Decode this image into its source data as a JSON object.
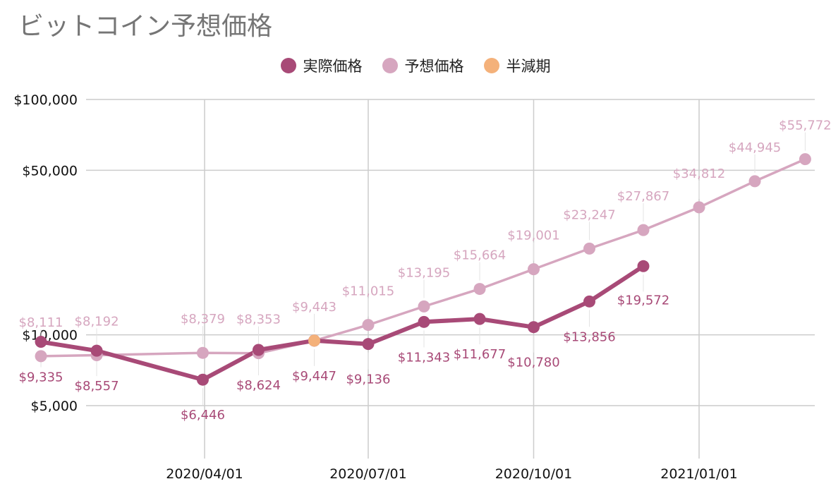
{
  "chart_data": {
    "type": "line",
    "title": "ビットコイン予想価格",
    "y_scale": "log",
    "ylim": [
      3000,
      100000
    ],
    "y_ticks": [
      {
        "value": 100000,
        "label": "$100,000"
      },
      {
        "value": 50000,
        "label": "$50,000"
      },
      {
        "value": 10000,
        "label": "$10,000"
      },
      {
        "value": 5000,
        "label": "$5,000"
      }
    ],
    "x_ticks": [
      "2020/04/01",
      "2020/07/01",
      "2020/10/01",
      "2021/01/01"
    ],
    "grid": true,
    "legend_position": "top",
    "series": [
      {
        "name": "実際価格",
        "color": "#a84a77",
        "points": [
          {
            "x": "2020/01/01",
            "y": 9335,
            "label": "$9,335"
          },
          {
            "x": "2020/02/01",
            "y": 8557,
            "label": "$8,557"
          },
          {
            "x": "2020/03/31",
            "y": 6446,
            "label": "$6,446"
          },
          {
            "x": "2020/05/01",
            "y": 8624,
            "label": "$8,624"
          },
          {
            "x": "2020/06/01",
            "y": 9447,
            "label": "$9,447"
          },
          {
            "x": "2020/07/01",
            "y": 9136,
            "label": "$9,136"
          },
          {
            "x": "2020/08/01",
            "y": 11343,
            "label": "$11,343"
          },
          {
            "x": "2020/09/01",
            "y": 11677,
            "label": "$11,677"
          },
          {
            "x": "2020/10/01",
            "y": 10780,
            "label": "$10,780"
          },
          {
            "x": "2020/11/01",
            "y": 13856,
            "label": "$13,856"
          },
          {
            "x": "2020/12/01",
            "y": 19572,
            "label": "$19,572"
          }
        ]
      },
      {
        "name": "予想価格",
        "color": "#d6a6bf",
        "points": [
          {
            "x": "2020/01/01",
            "y": 8111,
            "label": "$8,111"
          },
          {
            "x": "2020/02/01",
            "y": 8192,
            "label": "$8,192"
          },
          {
            "x": "2020/03/31",
            "y": 8379,
            "label": "$8,379"
          },
          {
            "x": "2020/05/01",
            "y": 8353,
            "label": "$8,353"
          },
          {
            "x": "2020/06/01",
            "y": 9443,
            "label": "$9,443"
          },
          {
            "x": "2020/07/01",
            "y": 11015,
            "label": "$11,015"
          },
          {
            "x": "2020/08/01",
            "y": 13195,
            "label": "$13,195"
          },
          {
            "x": "2020/09/01",
            "y": 15664,
            "label": "$15,664"
          },
          {
            "x": "2020/10/01",
            "y": 19001,
            "label": "$19,001"
          },
          {
            "x": "2020/11/01",
            "y": 23247,
            "label": "$23,247"
          },
          {
            "x": "2020/12/01",
            "y": 27867,
            "label": "$27,867"
          },
          {
            "x": "2021/01/01",
            "y": 34812,
            "label": "$34,812"
          },
          {
            "x": "2021/02/01",
            "y": 44945,
            "label": "$44,945"
          },
          {
            "x": "2021/03/01",
            "y": 55772,
            "label": "$55,772"
          }
        ]
      },
      {
        "name": "半減期",
        "color": "#f4b17a",
        "points": [
          {
            "x": "2020/06/01",
            "y": 9447
          }
        ]
      }
    ]
  }
}
